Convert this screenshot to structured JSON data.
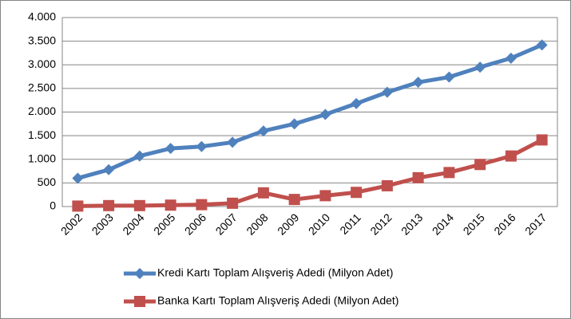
{
  "chart_data": {
    "type": "line",
    "categories": [
      "2002",
      "2003",
      "2004",
      "2005",
      "2006",
      "2007",
      "2008",
      "2009",
      "2010",
      "2011",
      "2012",
      "2013",
      "2014",
      "2015",
      "2016",
      "2017"
    ],
    "series": [
      {
        "name": "Kredi Kartı Toplam Alışveriş Adedi (Milyon Adet)",
        "color": "#4f81bd",
        "marker": "diamond",
        "values": [
          600,
          780,
          1070,
          1230,
          1270,
          1360,
          1600,
          1750,
          1950,
          2180,
          2420,
          2630,
          2740,
          2950,
          3140,
          3420
        ]
      },
      {
        "name": "Banka Kartı Toplam Alışveriş Adedi (Milyon Adet)",
        "color": "#c0504d",
        "marker": "square",
        "values": [
          10,
          20,
          20,
          30,
          40,
          70,
          290,
          150,
          230,
          300,
          440,
          610,
          720,
          890,
          1070,
          1410
        ]
      }
    ],
    "ylim": [
      0,
      4000
    ],
    "yticks": [
      0,
      500,
      {
        "value": 1000,
        "label": "1.000"
      },
      {
        "value": 1500,
        "label": "1.500"
      },
      {
        "value": 2000,
        "label": "2.000"
      },
      {
        "value": 2500,
        "label": "2.500"
      },
      {
        "value": 3000,
        "label": "3.000"
      },
      {
        "value": 3500,
        "label": "3.500"
      },
      {
        "value": 4000,
        "label": "4.000"
      }
    ],
    "grid": true,
    "legend": "bottom"
  }
}
